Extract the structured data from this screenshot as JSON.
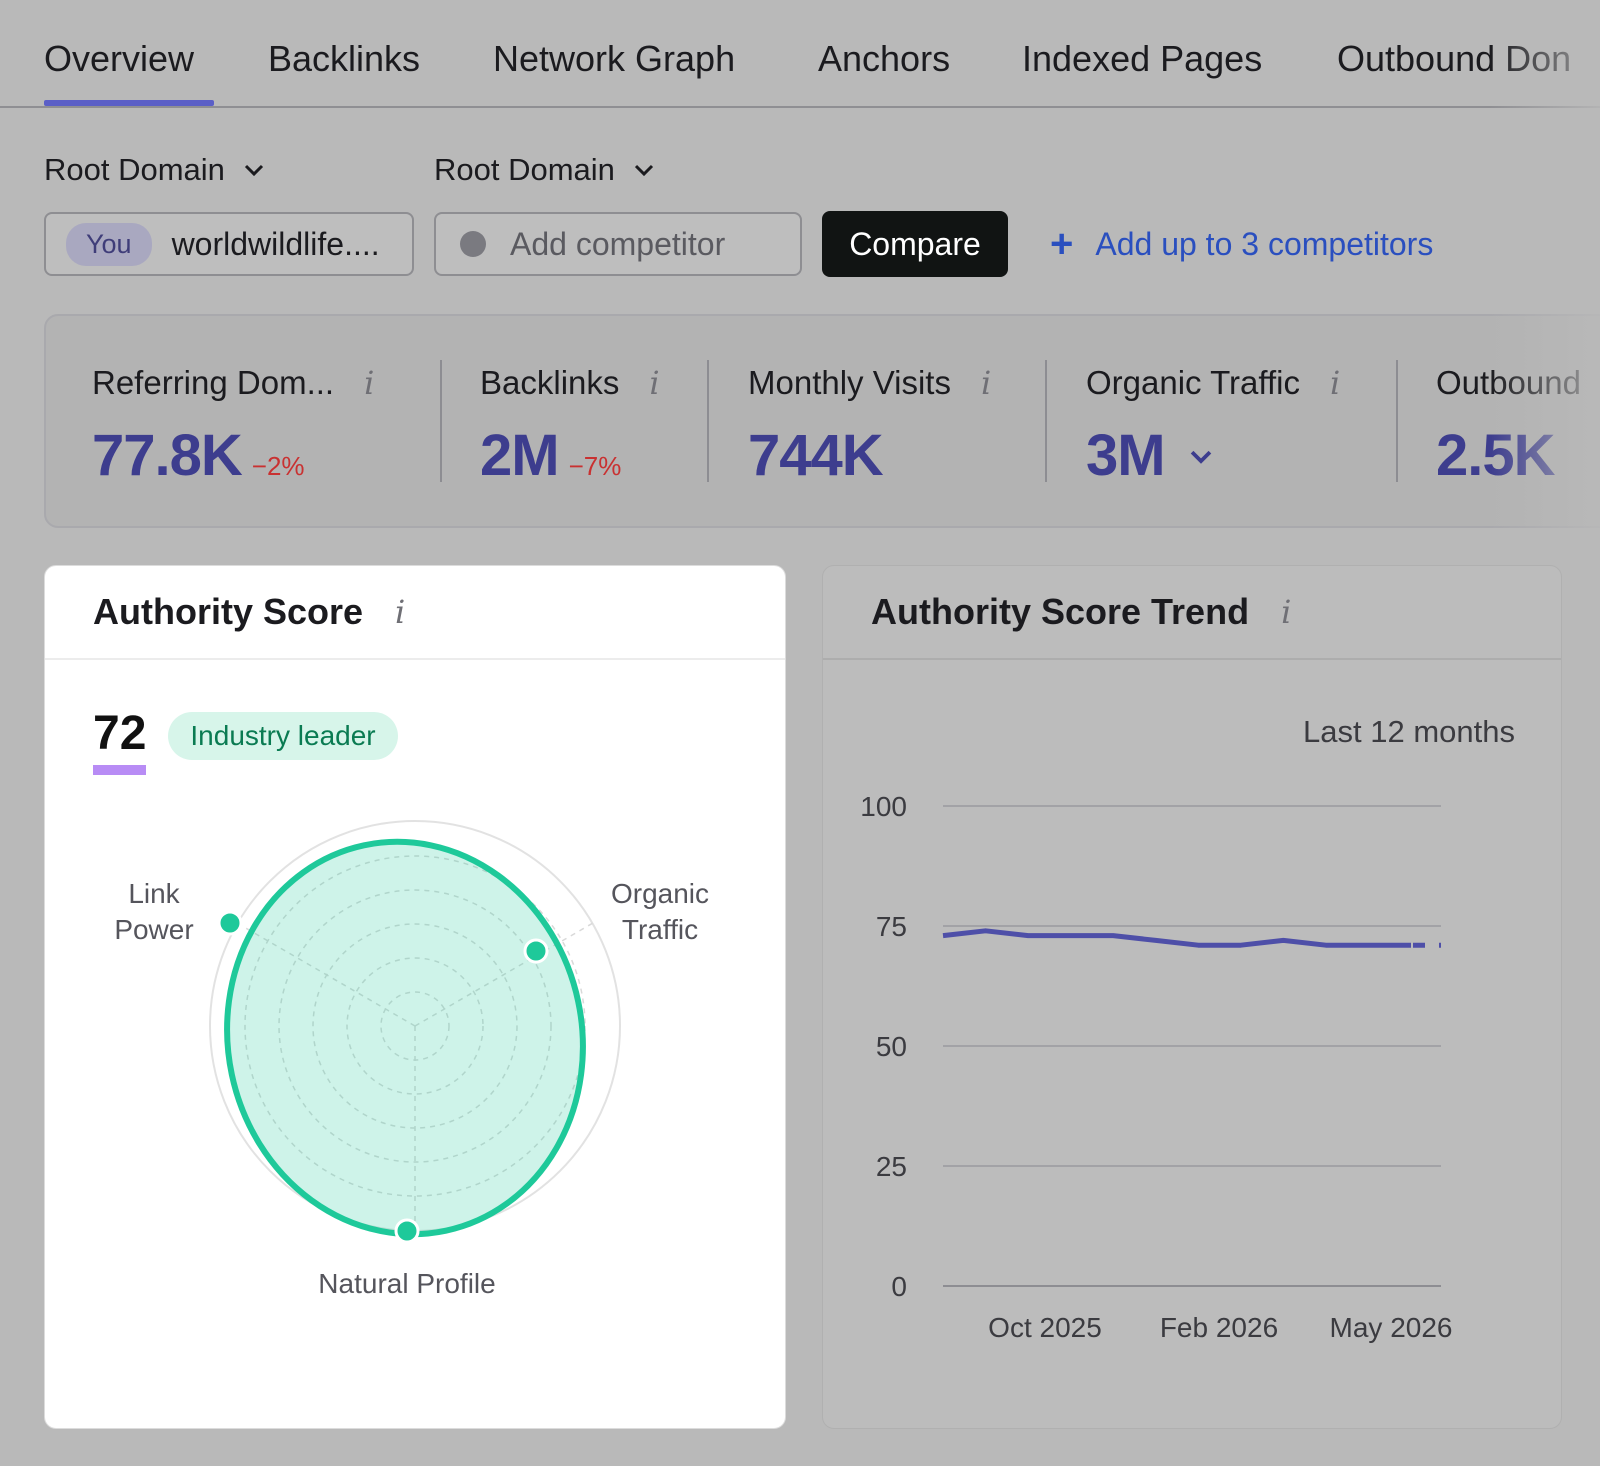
{
  "tabs": [
    "Overview",
    "Backlinks",
    "Network Graph",
    "Anchors",
    "Indexed Pages",
    "Outbound Don"
  ],
  "filters": {
    "left_label": "Root Domain",
    "right_label": "Root Domain",
    "you_chip": "You",
    "your_domain": "worldwildlife....",
    "competitor_placeholder": "Add competitor",
    "compare_button": "Compare",
    "add_competitors": "Add up to 3 competitors"
  },
  "metrics": [
    {
      "label": "Referring Dom...",
      "value": "77.8K",
      "delta": "−2%"
    },
    {
      "label": "Backlinks",
      "value": "2M",
      "delta": "−7%"
    },
    {
      "label": "Monthly Visits",
      "value": "744K",
      "delta": ""
    },
    {
      "label": "Organic Traffic",
      "value": "3M",
      "delta": ""
    },
    {
      "label": "Outbound",
      "value": "2.5K",
      "delta": ""
    }
  ],
  "authority": {
    "title": "Authority Score",
    "score": "72",
    "badge": "Industry leader",
    "radar_labels": {
      "link_power_1": "Link",
      "link_power_2": "Power",
      "organic_1": "Organic",
      "organic_2": "Traffic",
      "natural": "Natural Profile"
    }
  },
  "trend": {
    "title": "Authority Score Trend",
    "period": "Last 12 months"
  },
  "chart_data": {
    "type": "line",
    "title": "Authority Score Trend",
    "y_ticks": [
      100,
      75,
      50,
      25,
      0
    ],
    "ylim": [
      0,
      100
    ],
    "x_ticks": [
      "Oct 2025",
      "Feb 2026",
      "May 2026"
    ],
    "series": [
      {
        "values": [
          73,
          74,
          73,
          73,
          73,
          72,
          71,
          71,
          72,
          71,
          71,
          71
        ]
      }
    ],
    "projected_last": 71
  },
  "colors": {
    "accent": "#5b5fc7",
    "metric_value": "#3d3d8e",
    "negative": "#c93131",
    "radar": "#1ec99a",
    "trend_line": "#4e4fa8"
  }
}
